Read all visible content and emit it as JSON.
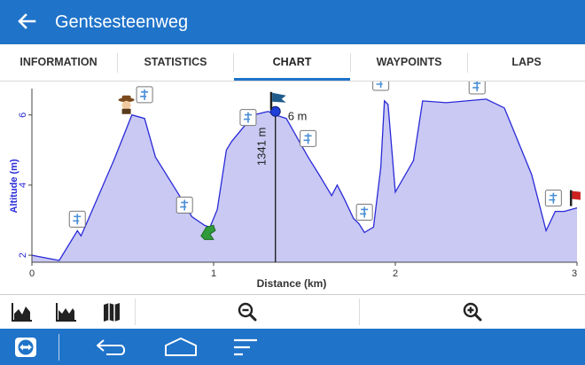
{
  "app": {
    "title": "Gentsesteenweg",
    "back_icon": "arrow-left-icon"
  },
  "tabs": [
    {
      "label": "INFORMATION",
      "active": false
    },
    {
      "label": "STATISTICS",
      "active": false
    },
    {
      "label": "CHART",
      "active": true
    },
    {
      "label": "WAYPOINTS",
      "active": false
    },
    {
      "label": "LAPS",
      "active": false
    }
  ],
  "chart_data": {
    "type": "area",
    "xlabel": "Distance (km)",
    "ylabel": "Altitude (m)",
    "xlim": [
      0,
      3
    ],
    "ylim": [
      1.8,
      6.6
    ],
    "x_ticks": [
      "0",
      "1",
      "2",
      "3"
    ],
    "y_ticks": [
      "2",
      "4",
      "6"
    ],
    "grid": false,
    "series": [
      {
        "color": "#2a2ad8",
        "fill": "#c9c9f3",
        "x": [
          0,
          0.15,
          0.25,
          0.27,
          0.3,
          0.45,
          0.55,
          0.62,
          0.68,
          0.8,
          0.88,
          0.95,
          0.98,
          1.02,
          1.07,
          1.1,
          1.22,
          1.3,
          1.34,
          1.4,
          1.52,
          1.58,
          1.65,
          1.68,
          1.72,
          1.77,
          1.8,
          1.83,
          1.88,
          1.92,
          1.94,
          1.96,
          2.0,
          2.1,
          2.15,
          2.28,
          2.5,
          2.6,
          2.75,
          2.83,
          2.88,
          2.93,
          3.0
        ],
        "y": [
          2.0,
          1.85,
          2.7,
          2.55,
          2.9,
          4.7,
          6.0,
          5.9,
          4.8,
          3.8,
          3.1,
          2.85,
          2.8,
          3.3,
          5.0,
          5.25,
          6.0,
          6.1,
          6.0,
          5.9,
          4.8,
          4.3,
          3.7,
          4.0,
          3.6,
          3.05,
          2.9,
          2.65,
          2.8,
          4.5,
          6.4,
          6.3,
          3.8,
          4.7,
          6.4,
          6.35,
          6.45,
          6.2,
          4.3,
          2.7,
          3.25,
          3.25,
          3.35
        ]
      }
    ],
    "cursor": {
      "x": 1.34,
      "distance_label": "1341 m",
      "altitude_label": "6 m"
    },
    "markers": [
      {
        "kind": "sign",
        "x": 0.25,
        "y": 2.7
      },
      {
        "kind": "cowboy",
        "x": 0.52,
        "y": 6.0
      },
      {
        "kind": "sign",
        "x": 0.62,
        "y": 6.25
      },
      {
        "kind": "sign",
        "x": 0.84,
        "y": 3.1
      },
      {
        "kind": "frog",
        "x": 0.97,
        "y": 2.55
      },
      {
        "kind": "sign",
        "x": 1.19,
        "y": 5.6
      },
      {
        "kind": "flag",
        "x": 1.34,
        "y": 6.1
      },
      {
        "kind": "sign",
        "x": 1.52,
        "y": 5.0
      },
      {
        "kind": "sign",
        "x": 1.83,
        "y": 2.9
      },
      {
        "kind": "sign",
        "x": 1.92,
        "y": 6.6
      },
      {
        "kind": "sign",
        "x": 2.45,
        "y": 6.5
      },
      {
        "kind": "sign",
        "x": 2.87,
        "y": 3.3
      },
      {
        "kind": "finish",
        "x": 2.99,
        "y": 3.35
      }
    ]
  },
  "toolbar": {
    "buttons": [
      "altitude-chart-icon",
      "slope-chart-icon",
      "map-icon"
    ],
    "zoom_out_icon": "zoom-out-icon",
    "zoom_in_icon": "zoom-in-icon"
  },
  "navbar": {
    "icons": [
      "teamviewer-icon",
      "back-icon",
      "home-icon",
      "recents-icon"
    ]
  },
  "colors": {
    "primary": "#1f73c9",
    "line": "#2a2ad8",
    "fill": "#c9c9f3",
    "axis_label": "#2a2ad8"
  }
}
